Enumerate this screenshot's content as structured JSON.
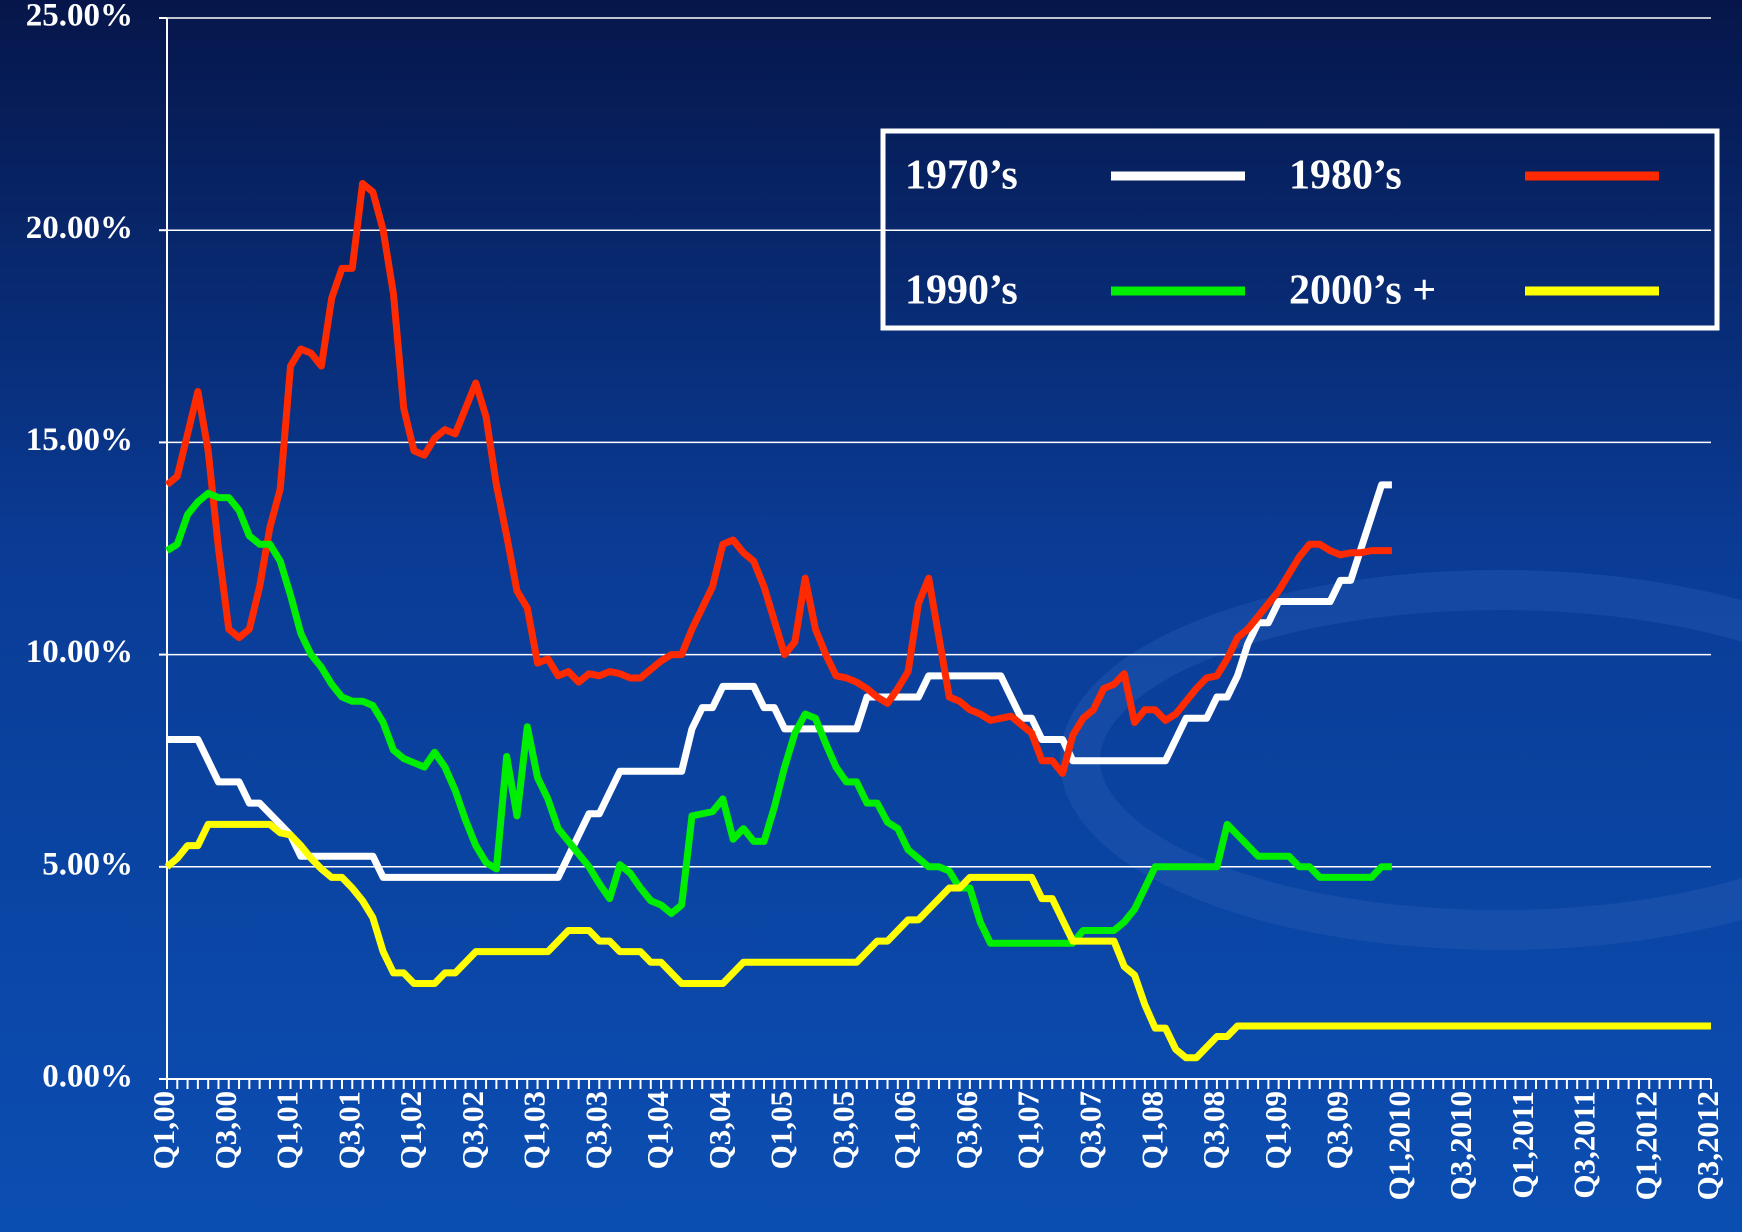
{
  "chart_data": {
    "type": "line",
    "categories": [
      "Q1,00",
      null,
      null,
      null,
      null,
      null,
      "Q3,00",
      null,
      null,
      null,
      null,
      null,
      "Q1,01",
      null,
      null,
      null,
      null,
      null,
      "Q3,01",
      null,
      null,
      null,
      null,
      null,
      "Q1,02",
      null,
      null,
      null,
      null,
      null,
      "Q3,02",
      null,
      null,
      null,
      null,
      null,
      "Q1,03",
      null,
      null,
      null,
      null,
      null,
      "Q3,03",
      null,
      null,
      null,
      null,
      null,
      "Q1,04",
      null,
      null,
      null,
      null,
      null,
      "Q3,04",
      null,
      null,
      null,
      null,
      null,
      "Q1,05",
      null,
      null,
      null,
      null,
      null,
      "Q3,05",
      null,
      null,
      null,
      null,
      null,
      "Q1,06",
      null,
      null,
      null,
      null,
      null,
      "Q3,06",
      null,
      null,
      null,
      null,
      null,
      "Q1,07",
      null,
      null,
      null,
      null,
      null,
      "Q3,07",
      null,
      null,
      null,
      null,
      null,
      "Q1,08",
      null,
      null,
      null,
      null,
      null,
      "Q3,08",
      null,
      null,
      null,
      null,
      null,
      "Q1,09",
      null,
      null,
      null,
      null,
      null,
      "Q3,09",
      null,
      null,
      null,
      null,
      null,
      "Q1,2010",
      null,
      null,
      null,
      null,
      null,
      "Q3,2010",
      null,
      null,
      null,
      null,
      null,
      "Q1,2011",
      null,
      null,
      null,
      null,
      null,
      "Q3,2011",
      null,
      null,
      null,
      null,
      null,
      "Q1,2012",
      null,
      null,
      null,
      null,
      null,
      "Q3,2012"
    ],
    "series": [
      {
        "name": "1970’s",
        "color": "#ffffff",
        "values": [
          8,
          8,
          8,
          8,
          7.5,
          7,
          7,
          7,
          6.5,
          6.5,
          6.25,
          6,
          5.75,
          5.25,
          5.25,
          5.25,
          5.25,
          5.25,
          5.25,
          5.25,
          5.25,
          4.75,
          4.75,
          4.75,
          4.75,
          4.75,
          4.75,
          4.75,
          4.75,
          4.75,
          4.75,
          4.75,
          4.75,
          4.75,
          4.75,
          4.75,
          4.75,
          4.75,
          4.75,
          5.25,
          5.75,
          6.25,
          6.25,
          6.75,
          7.25,
          7.25,
          7.25,
          7.25,
          7.25,
          7.25,
          7.25,
          8.25,
          8.75,
          8.75,
          9.25,
          9.25,
          9.25,
          9.25,
          8.75,
          8.75,
          8.25,
          8.25,
          8.25,
          8.25,
          8.25,
          8.25,
          8.25,
          8.25,
          9,
          9,
          9,
          9,
          9,
          9,
          9.5,
          9.5,
          9.5,
          9.5,
          9.5,
          9.5,
          9.5,
          9.5,
          9,
          8.5,
          8.5,
          8,
          8,
          8,
          7.5,
          7.5,
          7.5,
          7.5,
          7.5,
          7.5,
          7.5,
          7.5,
          7.5,
          7.5,
          8,
          8.5,
          8.5,
          8.5,
          9,
          9,
          9.5,
          10.25,
          10.75,
          10.75,
          11.25,
          11.25,
          11.25,
          11.25,
          11.25,
          11.25,
          11.75,
          11.75,
          12.5,
          13.25,
          14,
          14,
          null,
          null,
          null,
          null,
          null,
          null,
          null,
          null,
          null,
          null,
          null,
          null,
          null,
          null,
          null,
          null,
          null,
          null,
          null,
          null,
          null,
          null,
          null,
          null,
          null,
          null,
          null,
          null,
          null,
          null,
          null
        ]
      },
      {
        "name": "1980’s",
        "color": "#ff2a00",
        "values": [
          14.0,
          14.2,
          15.2,
          16.2,
          14.8,
          12.5,
          10.6,
          10.4,
          10.6,
          11.6,
          13.0,
          13.9,
          16.8,
          17.2,
          17.1,
          16.8,
          18.4,
          19.1,
          19.1,
          21.1,
          20.9,
          20.0,
          18.5,
          15.8,
          14.8,
          14.7,
          15.1,
          15.3,
          15.2,
          15.8,
          16.4,
          15.6,
          14.0,
          12.8,
          11.5,
          11.1,
          9.8,
          9.9,
          9.5,
          9.6,
          9.35,
          9.55,
          9.5,
          9.6,
          9.55,
          9.45,
          9.45,
          9.65,
          9.85,
          10.0,
          10.0,
          10.6,
          11.1,
          11.6,
          12.6,
          12.7,
          12.4,
          12.2,
          11.6,
          10.8,
          10.0,
          10.3,
          11.8,
          10.6,
          10.0,
          9.5,
          9.45,
          9.35,
          9.2,
          9.0,
          8.85,
          9.2,
          9.6,
          11.2,
          11.8,
          10.4,
          9.0,
          8.9,
          8.7,
          8.6,
          8.45,
          8.5,
          8.55,
          8.35,
          8.15,
          7.5,
          7.5,
          7.2,
          8.1,
          8.5,
          8.7,
          9.2,
          9.3,
          9.55,
          8.4,
          8.7,
          8.7,
          8.45,
          8.6,
          8.9,
          9.2,
          9.45,
          9.5,
          9.9,
          10.4,
          10.6,
          10.9,
          11.2,
          11.5,
          11.9,
          12.3,
          12.6,
          12.6,
          12.45,
          12.35,
          12.4,
          12.4,
          12.45,
          12.45,
          12.45,
          null,
          null,
          null,
          null,
          null,
          null,
          null,
          null,
          null,
          null,
          null,
          null,
          null,
          null,
          null,
          null,
          null,
          null,
          null,
          null,
          null,
          null,
          null,
          null,
          null,
          null,
          null,
          null,
          null,
          null,
          null
        ]
      },
      {
        "name": "1990’s",
        "color": "#00ee00",
        "values": [
          12.45,
          12.6,
          13.3,
          13.6,
          13.8,
          13.7,
          13.7,
          13.4,
          12.8,
          12.6,
          12.6,
          12.2,
          11.4,
          10.5,
          10.0,
          9.7,
          9.3,
          9.0,
          8.9,
          8.9,
          8.8,
          8.4,
          7.75,
          7.55,
          7.45,
          7.35,
          7.7,
          7.35,
          6.8,
          6.1,
          5.5,
          5.1,
          4.95,
          7.6,
          6.2,
          8.3,
          7.1,
          6.6,
          5.9,
          5.6,
          5.3,
          5.0,
          4.6,
          4.25,
          5.05,
          4.85,
          4.5,
          4.2,
          4.1,
          3.9,
          4.1,
          6.2,
          6.25,
          6.3,
          6.6,
          5.65,
          5.9,
          5.6,
          5.6,
          6.4,
          7.35,
          8.15,
          8.6,
          8.5,
          7.9,
          7.35,
          7.0,
          7.0,
          6.5,
          6.5,
          6.05,
          5.9,
          5.4,
          5.2,
          5.0,
          5.0,
          4.9,
          4.5,
          4.5,
          3.7,
          3.2,
          3.2,
          3.2,
          3.2,
          3.2,
          3.2,
          3.2,
          3.2,
          3.2,
          3.5,
          3.5,
          3.5,
          3.5,
          3.7,
          4.0,
          4.5,
          5.0,
          5.0,
          5.0,
          5.0,
          5.0,
          5.0,
          5.0,
          6.0,
          5.75,
          5.5,
          5.25,
          5.25,
          5.25,
          5.25,
          5.0,
          5.0,
          4.75,
          4.75,
          4.75,
          4.75,
          4.75,
          4.75,
          5.0,
          5.0,
          null,
          null,
          null,
          null,
          null,
          null,
          null,
          null,
          null,
          null,
          null,
          null,
          null,
          null,
          null,
          null,
          null,
          null,
          null,
          null,
          null,
          null,
          null,
          null,
          null,
          null,
          null,
          null,
          null,
          null,
          null
        ]
      },
      {
        "name": "2000’s +",
        "color": "#ffff00",
        "values": [
          5.0,
          5.2,
          5.5,
          5.5,
          6.0,
          6.0,
          6.0,
          6.0,
          6.0,
          6.0,
          6.0,
          5.8,
          5.75,
          5.5,
          5.2,
          4.95,
          4.75,
          4.75,
          4.5,
          4.2,
          3.8,
          3.0,
          2.5,
          2.5,
          2.25,
          2.25,
          2.25,
          2.5,
          2.5,
          2.75,
          3.0,
          3.0,
          3.0,
          3.0,
          3.0,
          3.0,
          3.0,
          3.0,
          3.25,
          3.5,
          3.5,
          3.5,
          3.25,
          3.25,
          3.0,
          3.0,
          3.0,
          2.75,
          2.75,
          2.5,
          2.25,
          2.25,
          2.25,
          2.25,
          2.25,
          2.5,
          2.75,
          2.75,
          2.75,
          2.75,
          2.75,
          2.75,
          2.75,
          2.75,
          2.75,
          2.75,
          2.75,
          2.75,
          3.0,
          3.25,
          3.25,
          3.5,
          3.75,
          3.75,
          4.0,
          4.25,
          4.5,
          4.5,
          4.75,
          4.75,
          4.75,
          4.75,
          4.75,
          4.75,
          4.75,
          4.25,
          4.25,
          3.75,
          3.25,
          3.25,
          3.25,
          3.25,
          3.25,
          2.65,
          2.45,
          1.75,
          1.2,
          1.2,
          0.7,
          0.5,
          0.5,
          0.75,
          1.0,
          1.0,
          1.25,
          1.25,
          1.25,
          1.25,
          1.25,
          1.25,
          1.25,
          1.25,
          1.25,
          1.25,
          1.25,
          1.25,
          1.25,
          1.25,
          1.25,
          1.25,
          1.25,
          1.25,
          1.25,
          1.25,
          1.25,
          1.25,
          1.25,
          1.25,
          1.25,
          1.25,
          1.25,
          1.25,
          1.25,
          1.25,
          1.25,
          1.25,
          1.25,
          1.25,
          1.25,
          1.25,
          1.25,
          1.25,
          1.25,
          1.25,
          1.25,
          1.25,
          1.25,
          1.25,
          1.25,
          1.25,
          1.25
        ]
      }
    ],
    "ylim": [
      0,
      25
    ],
    "yticks": [
      {
        "value": 0,
        "label": "0.00%"
      },
      {
        "value": 5,
        "label": "5.00%"
      },
      {
        "value": 10,
        "label": "10.00%"
      },
      {
        "value": 15,
        "label": "15.00%"
      },
      {
        "value": 20,
        "label": "20.00%"
      },
      {
        "value": 25,
        "label": "25.00%"
      }
    ],
    "grid": true,
    "legend": "upper right"
  }
}
